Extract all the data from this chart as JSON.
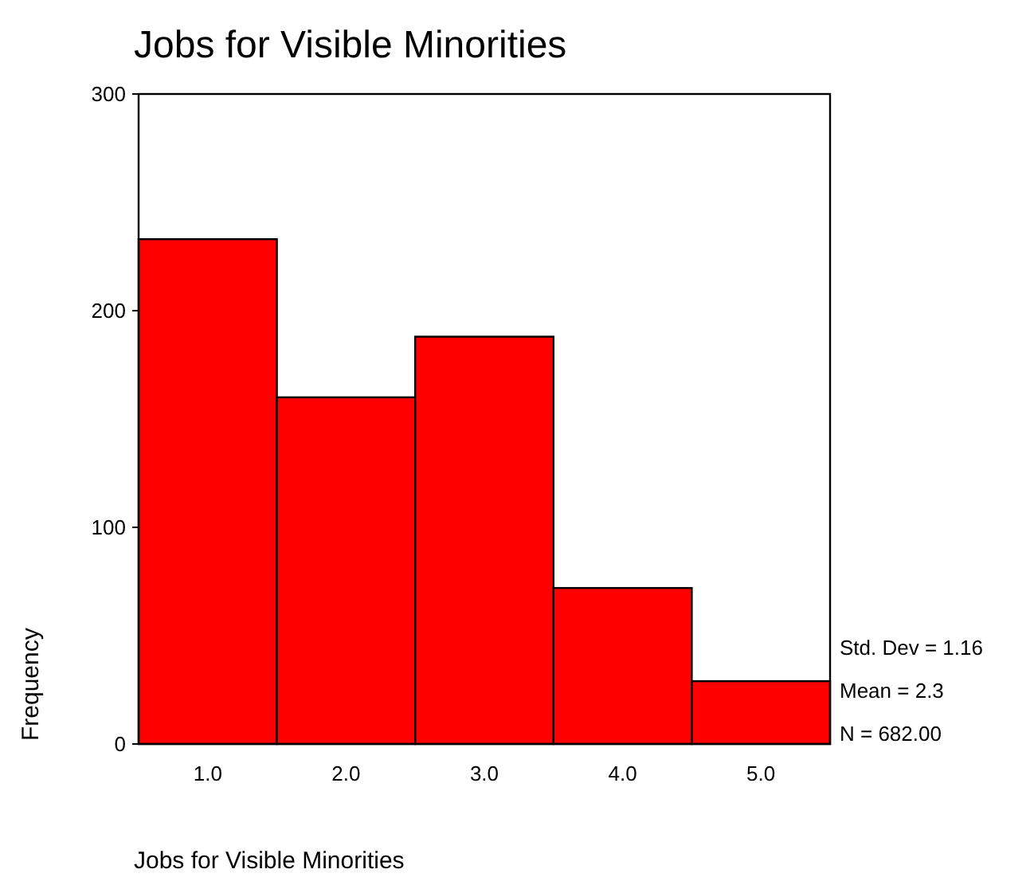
{
  "chart_data": {
    "type": "histogram",
    "title": "Jobs for Visible Minorities",
    "xlabel": "Jobs for Visible Minorities",
    "ylabel": "Frequency",
    "bins": [
      0.5,
      1.5,
      2.5,
      3.5,
      4.5,
      5.5
    ],
    "values": [
      233,
      160,
      188,
      72,
      29
    ],
    "color": "#ff0000",
    "xlim": [
      0.5,
      5.5
    ],
    "xticks": [
      {
        "value": 1,
        "label": "1.0"
      },
      {
        "value": 2,
        "label": "2.0"
      },
      {
        "value": 3,
        "label": "3.0"
      },
      {
        "value": 4,
        "label": "4.0"
      },
      {
        "value": 5,
        "label": "5.0"
      }
    ],
    "ylim": [
      0,
      300
    ],
    "yticks": [
      0,
      100,
      200,
      300
    ],
    "grid": false,
    "annotations": [
      "Std. Dev = 1.16",
      "Mean = 2.3",
      "N = 682.00"
    ]
  }
}
